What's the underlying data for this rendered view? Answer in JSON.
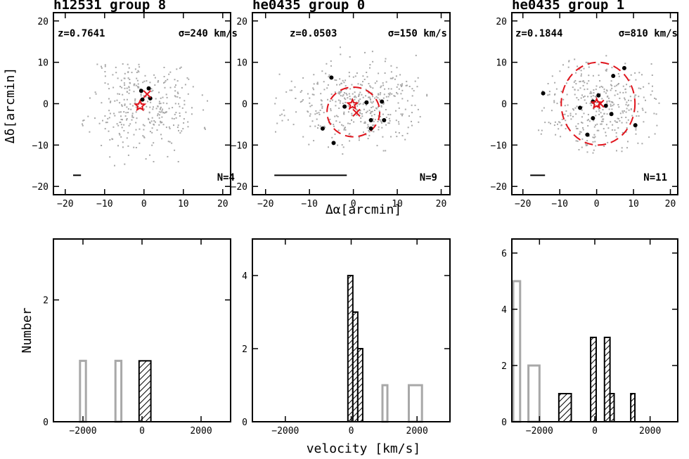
{
  "labels": {
    "xlabel_top": "Δα[arcmin]",
    "ylabel_top": "Δδ[arcmin]",
    "xlabel_bottom": "velocity [km/s]",
    "ylabel_bottom": "Number"
  },
  "colors": {
    "members": "#000000",
    "background": "#a8a8a8",
    "highlight": "#e0141c"
  },
  "chart_data": [
    {
      "type": "scatter",
      "title": "h12531 group 8",
      "z_label": "z=0.7641",
      "sigma_label": "σ=240 km/s",
      "n_label": "N=4",
      "xlim": [
        -23,
        22
      ],
      "ylim": [
        -22,
        22
      ],
      "xticks": [
        -20,
        -10,
        0,
        10,
        20
      ],
      "yticks": [
        -20,
        -10,
        0,
        10,
        20
      ],
      "center_star": [
        -1,
        -0.5
      ],
      "mean_cross": [
        0.8,
        2.3
      ],
      "radius_circle": null,
      "scale_bar": [
        -18,
        -16
      ],
      "members": [
        [
          -0.7,
          3.1
        ],
        [
          1.2,
          3.7
        ],
        [
          -0.4,
          1.0
        ],
        [
          1.6,
          1.3
        ]
      ],
      "field_seed": 11,
      "field_count": 340,
      "field_spread": [
        7,
        6
      ],
      "field_range": [
        [
          -16,
          16
        ],
        [
          -16,
          10
        ]
      ]
    },
    {
      "type": "scatter",
      "title": "he0435 group 0",
      "z_label": "z=0.0503",
      "sigma_label": "σ=150 km/s",
      "n_label": "N=9",
      "xlim": [
        -23,
        22
      ],
      "ylim": [
        -22,
        22
      ],
      "xticks": [
        -20,
        -10,
        0,
        10,
        20
      ],
      "yticks": [
        -20,
        -10,
        0,
        10,
        20
      ],
      "center_star": [
        -0.2,
        -0.2
      ],
      "mean_cross": [
        0.7,
        -2.2
      ],
      "radius_circle": {
        "cx": 0,
        "cy": -2,
        "r": 6
      },
      "scale_bar": [
        -18,
        -1.5
      ],
      "members": [
        [
          -5,
          6.3
        ],
        [
          -2,
          -0.7
        ],
        [
          3,
          0.3
        ],
        [
          4,
          -4
        ],
        [
          6.5,
          0.5
        ],
        [
          7,
          -4
        ],
        [
          4,
          -6
        ],
        [
          -7,
          -6
        ],
        [
          -4.5,
          -9.5
        ]
      ],
      "field_seed": 23,
      "field_count": 420,
      "field_spread": [
        8,
        5
      ],
      "field_range": [
        [
          -20,
          17
        ],
        [
          -12,
          14
        ]
      ]
    },
    {
      "type": "scatter",
      "title": "he0435 group 1",
      "z_label": "z=0.1844",
      "sigma_label": "σ=810 km/s",
      "n_label": "N=11",
      "xlim": [
        -23,
        22
      ],
      "ylim": [
        -22,
        22
      ],
      "xticks": [
        -20,
        -10,
        0,
        10,
        20
      ],
      "yticks": [
        -20,
        -10,
        0,
        10,
        20
      ],
      "center_star": [
        0,
        0
      ],
      "mean_cross": [
        1,
        0
      ],
      "radius_circle": {
        "cx": 0.4,
        "cy": 0,
        "r": 10
      },
      "scale_bar": [
        -18,
        -14
      ],
      "members": [
        [
          -14.5,
          2.5
        ],
        [
          -4.5,
          -1
        ],
        [
          -1,
          -3.5
        ],
        [
          0.5,
          2
        ],
        [
          2.5,
          -0.5
        ],
        [
          4,
          -2.5
        ],
        [
          4.5,
          6.7
        ],
        [
          7.5,
          8.6
        ],
        [
          10.5,
          -5.2
        ],
        [
          -2.5,
          -7.5
        ],
        [
          -1,
          0.5
        ]
      ],
      "field_seed": 37,
      "field_count": 360,
      "field_spread": [
        7,
        5.5
      ],
      "field_range": [
        [
          -16,
          17
        ],
        [
          -12,
          12
        ]
      ]
    },
    {
      "type": "bar",
      "xlim": [
        -3000,
        3000
      ],
      "ylim": [
        0,
        3
      ],
      "xticks": [
        -2000,
        0,
        2000
      ],
      "yticks": [
        0,
        2
      ],
      "open_bins": [
        {
          "x0": -2100,
          "x1": -1900,
          "count": 1
        },
        {
          "x0": -900,
          "x1": -700,
          "count": 1
        }
      ],
      "hatched_bins": [
        {
          "x0": -100,
          "x1": 300,
          "count": 1
        }
      ]
    },
    {
      "type": "bar",
      "xlim": [
        -3000,
        3000
      ],
      "ylim": [
        0,
        5
      ],
      "xticks": [
        -2000,
        0,
        2000
      ],
      "yticks": [
        0,
        2,
        4
      ],
      "open_bins": [
        {
          "x0": 950,
          "x1": 1100,
          "count": 1
        },
        {
          "x0": 1750,
          "x1": 2150,
          "count": 1
        }
      ],
      "hatched_bins": [
        {
          "x0": -100,
          "x1": 50,
          "count": 4
        },
        {
          "x0": 50,
          "x1": 200,
          "count": 3
        },
        {
          "x0": 200,
          "x1": 350,
          "count": 2
        }
      ]
    },
    {
      "type": "bar",
      "xlim": [
        -3000,
        3000
      ],
      "ylim": [
        0,
        6.5
      ],
      "xticks": [
        -2000,
        0,
        2000
      ],
      "yticks": [
        0,
        2,
        4,
        6
      ],
      "open_bins": [
        {
          "x0": -2950,
          "x1": -2700,
          "count": 5
        },
        {
          "x0": -2400,
          "x1": -2000,
          "count": 2
        }
      ],
      "hatched_bins": [
        {
          "x0": -1300,
          "x1": -850,
          "count": 1
        },
        {
          "x0": -150,
          "x1": 50,
          "count": 3
        },
        {
          "x0": 350,
          "x1": 550,
          "count": 3
        },
        {
          "x0": 550,
          "x1": 700,
          "count": 1
        },
        {
          "x0": 1300,
          "x1": 1450,
          "count": 1
        }
      ]
    }
  ]
}
